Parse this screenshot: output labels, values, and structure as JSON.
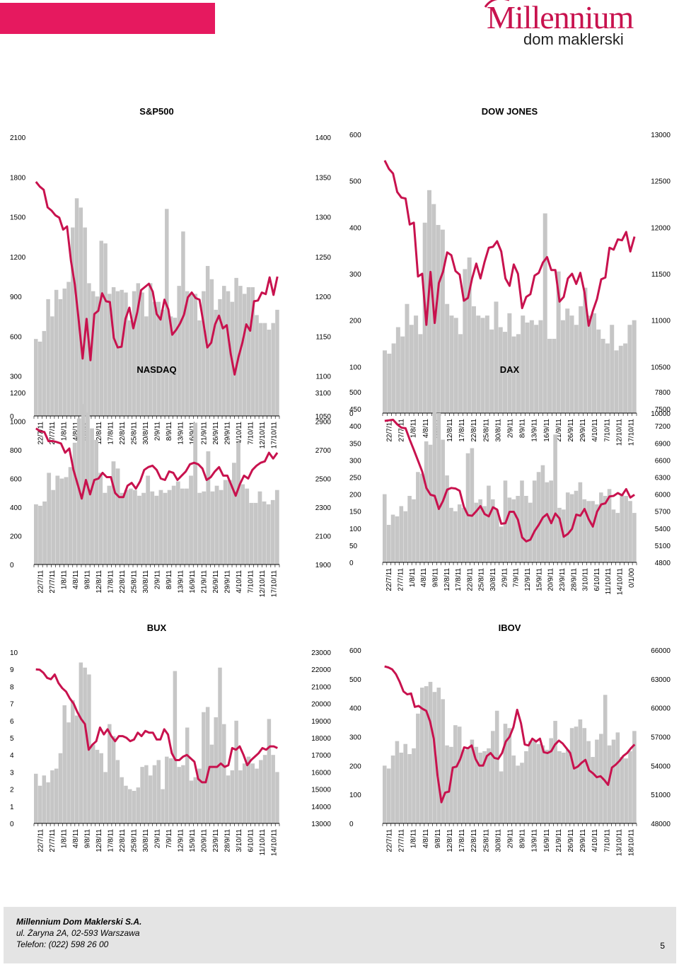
{
  "header": {
    "logo_main": "Millennium",
    "logo_sub": "dom maklerski",
    "band_color": "#e6195f",
    "logo_color": "#c8124e"
  },
  "colors": {
    "bar": "#c6c6c6",
    "line": "#c8124e",
    "axis": "#000000"
  },
  "chart_data": [
    {
      "id": "sp500",
      "type": "bar+line",
      "title": "S&P500",
      "left_axis": {
        "min": 0,
        "max": 2100,
        "ticks": [
          "0",
          "300",
          "600",
          "900",
          "1200",
          "1500",
          "1800",
          "2100"
        ]
      },
      "right_axis": {
        "min": 1050,
        "max": 1400,
        "ticks": [
          "1050",
          "1100",
          "1150",
          "1200",
          "1250",
          "1300",
          "1350",
          "1400"
        ]
      },
      "x_labels": [
        "22/7/11",
        "27/7/11",
        "1/8/11",
        "4/8/11",
        "9/8/11",
        "12/8/11",
        "17/8/11",
        "22/8/11",
        "25/8/11",
        "30/8/11",
        "2/9/11",
        "8/9/11",
        "13/9/11",
        "16/9/11",
        "21/9/11",
        "26/9/11",
        "29/9/11",
        "4/10/11",
        "7/10/11",
        "12/10/11",
        "17/10/11"
      ],
      "bars": [
        580,
        560,
        640,
        880,
        750,
        950,
        880,
        960,
        1010,
        1420,
        1640,
        1570,
        1420,
        1000,
        940,
        900,
        1320,
        1300,
        920,
        970,
        940,
        950,
        930,
        720,
        940,
        1000,
        930,
        750,
        1000,
        860,
        860,
        800,
        1560,
        750,
        740,
        980,
        1390,
        940,
        920,
        920,
        720,
        940,
        1130,
        1030,
        800,
        880,
        980,
        940,
        860,
        1040,
        980,
        920,
        970,
        970,
        760,
        700,
        700,
        650,
        700,
        800
      ],
      "line": [
        1344,
        1338,
        1334,
        1312,
        1308,
        1302,
        1299,
        1284,
        1288,
        1245,
        1215,
        1170,
        1122,
        1172,
        1120,
        1178,
        1182,
        1204,
        1194,
        1193,
        1148,
        1136,
        1137,
        1172,
        1186,
        1160,
        1180,
        1208,
        1212,
        1216,
        1206,
        1178,
        1171,
        1196,
        1184,
        1152,
        1158,
        1166,
        1177,
        1199,
        1205,
        1198,
        1196,
        1167,
        1136,
        1142,
        1165,
        1176,
        1160,
        1164,
        1128,
        1102,
        1124,
        1142,
        1165,
        1157,
        1194,
        1195,
        1205,
        1203,
        1224,
        1202,
        1225
      ]
    },
    {
      "id": "dowjones",
      "type": "bar+line",
      "title": "DOW JONES",
      "left_axis": {
        "min": 0,
        "max": 600,
        "ticks": [
          "0",
          "100",
          "200",
          "300",
          "400",
          "500",
          "600"
        ]
      },
      "right_axis": {
        "min": 10000,
        "max": 13000,
        "ticks": [
          "10000",
          "10500",
          "11000",
          "11500",
          "12000",
          "12500",
          "13000"
        ]
      },
      "x_labels": [
        "22/7/11",
        "27/7/11",
        "1/8/11",
        "4/8/11",
        "9/8/11",
        "12/8/11",
        "17/8/11",
        "22/8/11",
        "25/8/11",
        "30/8/11",
        "2/9/11",
        "8/9/11",
        "13/9/11",
        "16/9/11",
        "21/9/11",
        "26/9/11",
        "29/9/11",
        "4/10/11",
        "7/10/11",
        "12/10/11",
        "17/10/11"
      ],
      "bars": [
        135,
        128,
        150,
        185,
        165,
        235,
        190,
        210,
        170,
        410,
        480,
        450,
        405,
        395,
        235,
        210,
        205,
        170,
        310,
        335,
        230,
        210,
        205,
        210,
        180,
        240,
        185,
        175,
        215,
        165,
        170,
        210,
        195,
        200,
        190,
        200,
        430,
        160,
        160,
        305,
        200,
        225,
        210,
        190,
        230,
        270,
        210,
        215,
        180,
        160,
        150,
        190,
        135,
        145,
        150,
        190,
        200
      ],
      "line": [
        12720,
        12630,
        12580,
        12380,
        12320,
        12310,
        12030,
        12050,
        11470,
        11500,
        10950,
        11520,
        10970,
        11400,
        11520,
        11730,
        11700,
        11530,
        11490,
        11210,
        11240,
        11450,
        11610,
        11450,
        11630,
        11780,
        11790,
        11850,
        11740,
        11450,
        11370,
        11600,
        11500,
        11130,
        11250,
        11280,
        11480,
        11510,
        11620,
        11680,
        11540,
        11540,
        11200,
        11250,
        11450,
        11500,
        11390,
        11510,
        11300,
        10940,
        11100,
        11230,
        11440,
        11460,
        11780,
        11760,
        11870,
        11860,
        11950,
        11740,
        11900
      ]
    },
    {
      "id": "nasdaq",
      "type": "bar+line",
      "title": "NASDAQ",
      "left_axis": {
        "min": 0,
        "max": 1200,
        "ticks": [
          "0",
          "200",
          "400",
          "600",
          "800",
          "1000",
          "1200"
        ]
      },
      "right_axis": {
        "min": 1900,
        "max": 3100,
        "ticks": [
          "1900",
          "2100",
          "2300",
          "2500",
          "2700",
          "2900",
          "3100"
        ]
      },
      "x_labels": [
        "22/7/11",
        "27/7/11",
        "1/8/11",
        "4/8/11",
        "9/8/11",
        "12/8/11",
        "17/8/11",
        "22/8/11",
        "25/8/11",
        "30/8/11",
        "2/9/11",
        "8/9/11",
        "13/9/11",
        "16/9/11",
        "21/9/11",
        "26/9/11",
        "29/9/11",
        "4/10/11",
        "7/10/11",
        "12/10/11",
        "17/10/11"
      ],
      "bars": [
        420,
        410,
        440,
        640,
        520,
        620,
        600,
        610,
        680,
        850,
        1020,
        1120,
        1060,
        950,
        870,
        640,
        500,
        550,
        720,
        670,
        500,
        520,
        530,
        520,
        480,
        500,
        620,
        510,
        480,
        520,
        500,
        520,
        550,
        580,
        530,
        530,
        620,
        990,
        500,
        510,
        790,
        510,
        550,
        520,
        590,
        590,
        710,
        850,
        560,
        530,
        430,
        430,
        510,
        440,
        420,
        450,
        520
      ],
      "line": [
        2850,
        2830,
        2825,
        2760,
        2762,
        2755,
        2745,
        2680,
        2710,
        2560,
        2460,
        2360,
        2490,
        2390,
        2490,
        2500,
        2540,
        2510,
        2510,
        2400,
        2370,
        2370,
        2450,
        2470,
        2430,
        2480,
        2560,
        2580,
        2590,
        2560,
        2500,
        2490,
        2550,
        2540,
        2490,
        2520,
        2550,
        2600,
        2610,
        2600,
        2570,
        2490,
        2510,
        2550,
        2580,
        2520,
        2520,
        2450,
        2380,
        2460,
        2520,
        2500,
        2560,
        2590,
        2610,
        2620,
        2680,
        2640,
        2680
      ]
    },
    {
      "id": "dax",
      "type": "bar+line",
      "title": "DAX",
      "left_axis": {
        "min": 0,
        "max": 500,
        "ticks": [
          "0",
          "50",
          "100",
          "150",
          "200",
          "250",
          "300",
          "350",
          "400",
          "450",
          "500"
        ]
      },
      "right_axis": {
        "min": 4800,
        "max": 7800,
        "ticks": [
          "4800",
          "5100",
          "5400",
          "5700",
          "6000",
          "6300",
          "6600",
          "6900",
          "7200",
          "7500",
          "7800"
        ]
      },
      "x_labels": [
        "22/7/11",
        "27/7/11",
        "1/8/11",
        "4/8/11",
        "9/8/11",
        "12/8/11",
        "17/8/11",
        "22/8/11",
        "25/8/11",
        "30/8/11",
        "2/9/11",
        "7/9/11",
        "12/9/11",
        "15/9/11",
        "20/9/11",
        "23/9/11",
        "28/9/11",
        "3/10/11",
        "6/10/11",
        "11/10/11",
        "14/10/11",
        "0/1/00"
      ],
      "bars": [
        200,
        110,
        140,
        135,
        165,
        150,
        195,
        185,
        265,
        260,
        355,
        345,
        440,
        438,
        360,
        255,
        160,
        150,
        170,
        160,
        320,
        335,
        175,
        185,
        165,
        225,
        185,
        155,
        105,
        240,
        190,
        185,
        195,
        240,
        195,
        175,
        240,
        265,
        285,
        235,
        240,
        375,
        160,
        155,
        205,
        200,
        210,
        235,
        185,
        180,
        180,
        170,
        205,
        195,
        215,
        155,
        145,
        200,
        195,
        180,
        145
      ],
      "line": [
        7290,
        7300,
        7310,
        7230,
        7170,
        7160,
        6960,
        6780,
        6590,
        6400,
        6110,
        5990,
        5970,
        5740,
        5880,
        6080,
        6110,
        6100,
        6060,
        5780,
        5630,
        5620,
        5700,
        5790,
        5650,
        5610,
        5770,
        5730,
        5480,
        5490,
        5690,
        5690,
        5550,
        5240,
        5170,
        5200,
        5350,
        5460,
        5590,
        5650,
        5490,
        5660,
        5570,
        5250,
        5300,
        5390,
        5640,
        5620,
        5740,
        5560,
        5430,
        5690,
        5820,
        5840,
        5960,
        5970,
        6020,
        5980,
        6090,
        5940,
        5990
      ]
    },
    {
      "id": "bux",
      "type": "bar+line",
      "title": "BUX",
      "left_axis": {
        "min": 0,
        "max": 10,
        "ticks": [
          "0",
          "1",
          "2",
          "3",
          "4",
          "5",
          "6",
          "7",
          "8",
          "9",
          "10"
        ]
      },
      "right_axis": {
        "min": 13000,
        "max": 23000,
        "ticks": [
          "13000",
          "14000",
          "15000",
          "16000",
          "17000",
          "18000",
          "19000",
          "20000",
          "21000",
          "22000",
          "23000"
        ]
      },
      "x_labels": [
        "22/7/11",
        "27/7/11",
        "1/8/11",
        "4/8/11",
        "9/8/11",
        "12/8/11",
        "17/8/11",
        "22/8/11",
        "25/8/11",
        "30/8/11",
        "2/9/11",
        "7/9/11",
        "12/9/11",
        "15/9/11",
        "20/9/11",
        "23/9/11",
        "28/9/11",
        "3/10/11",
        "6/10/11",
        "11/10/11",
        "14/10/11"
      ],
      "bars": [
        2.9,
        2.2,
        2.8,
        2.4,
        3.1,
        3.2,
        4.1,
        6.9,
        5.9,
        7.2,
        6.3,
        9.4,
        9.1,
        8.7,
        4.6,
        4.3,
        4.1,
        3.0,
        5.8,
        5.1,
        3.7,
        2.7,
        2.2,
        2.0,
        1.9,
        2.1,
        3.3,
        3.4,
        2.8,
        3.4,
        3.7,
        2.0,
        3.9,
        3.8,
        8.9,
        3.3,
        3.4,
        5.6,
        2.5,
        2.7,
        3.2,
        6.5,
        6.8,
        4.6,
        6.2,
        9.1,
        5.8,
        2.8,
        3.1,
        6.0,
        3.1,
        3.5,
        3.9,
        3.5,
        3.2,
        3.7,
        4.0,
        6.1,
        4.0,
        3.0
      ],
      "line": [
        22000,
        21980,
        21800,
        21500,
        21420,
        21700,
        21200,
        20900,
        20700,
        20300,
        20000,
        19500,
        19100,
        18800,
        17300,
        17600,
        17800,
        18600,
        18200,
        18500,
        18100,
        17800,
        18100,
        18100,
        18000,
        17800,
        17900,
        18300,
        18100,
        18400,
        18300,
        18300,
        17900,
        17900,
        18500,
        18200,
        17100,
        16700,
        16700,
        16900,
        17000,
        16800,
        16600,
        15600,
        15400,
        15400,
        16300,
        16300,
        16300,
        16500,
        16300,
        16400,
        17400,
        17300,
        17500,
        17000,
        16400,
        16700,
        16900,
        17100,
        17400,
        17300,
        17500,
        17500,
        17400
      ]
    },
    {
      "id": "ibov",
      "type": "bar+line",
      "title": "IBOV",
      "left_axis": {
        "min": 0,
        "max": 600,
        "ticks": [
          "0",
          "100",
          "200",
          "300",
          "400",
          "500",
          "600"
        ]
      },
      "right_axis": {
        "min": 48000,
        "max": 66000,
        "ticks": [
          "48000",
          "51000",
          "54000",
          "57000",
          "60000",
          "63000",
          "66000"
        ]
      },
      "x_labels": [
        "22/7/11",
        "27/7/11",
        "1/8/11",
        "4/8/11",
        "9/8/11",
        "12/8/11",
        "17/8/11",
        "22/8/11",
        "25/8/11",
        "30/8/11",
        "2/9/11",
        "8/9/11",
        "13/9/11",
        "16/9/11",
        "21/9/11",
        "26/9/11",
        "29/9/11",
        "4/10/11",
        "7/10/11",
        "13/10/11",
        "18/10/11"
      ],
      "bars": [
        200,
        190,
        235,
        285,
        245,
        275,
        240,
        260,
        380,
        470,
        475,
        490,
        455,
        470,
        430,
        270,
        265,
        340,
        335,
        255,
        260,
        290,
        265,
        245,
        250,
        260,
        320,
        390,
        180,
        345,
        330,
        235,
        200,
        210,
        250,
        285,
        285,
        275,
        270,
        255,
        295,
        355,
        250,
        245,
        255,
        330,
        335,
        360,
        330,
        285,
        230,
        290,
        310,
        445,
        270,
        290,
        315,
        230,
        225,
        250,
        320
      ],
      "line": [
        64300,
        64200,
        64000,
        63500,
        62700,
        61700,
        61400,
        61500,
        60100,
        60200,
        59900,
        59700,
        58600,
        56800,
        52900,
        50200,
        51200,
        51300,
        53800,
        53900,
        54700,
        55900,
        55800,
        56100,
        54700,
        54000,
        54000,
        55000,
        55300,
        54800,
        54700,
        55300,
        56500,
        57000,
        58000,
        59800,
        58400,
        56200,
        56100,
        56800,
        56500,
        56800,
        55400,
        55300,
        55500,
        56200,
        56600,
        56300,
        55800,
        55300,
        53700,
        53900,
        54300,
        54600,
        53500,
        53200,
        52800,
        52900,
        52500,
        52000,
        53800,
        54100,
        54500,
        55000,
        55300,
        55800,
        56200
      ]
    }
  ],
  "footer": {
    "company": "Millennium Dom Maklerski S.A.",
    "address": "ul. Żaryna 2A, 02-593 Warszawa",
    "phone": "Telefon: (022) 598 26 00",
    "page_number": "5"
  }
}
